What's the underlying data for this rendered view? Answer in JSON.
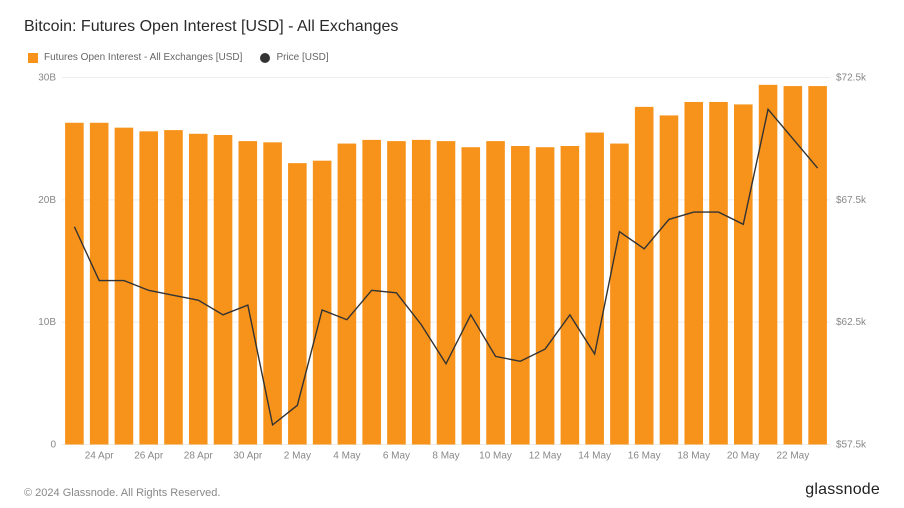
{
  "title": "Bitcoin: Futures Open Interest [USD] - All Exchanges",
  "legend": {
    "bars": "Futures Open Interest - All Exchanges [USD]",
    "line": "Price [USD]"
  },
  "footer": {
    "copyright": "© 2024 Glassnode. All Rights Reserved.",
    "brand": "glassnode"
  },
  "chart": {
    "type": "bar+line",
    "background_color": "#ffffff",
    "grid_color": "#ececec",
    "bar_color": "#f7931a",
    "line_color": "#333333",
    "left_axis": {
      "min": 0,
      "max": 30,
      "ticks": [
        0,
        10,
        20,
        30
      ],
      "tick_labels": [
        "0",
        "10B",
        "20B",
        "30B"
      ]
    },
    "right_axis": {
      "min": 57.5,
      "max": 72.5,
      "ticks": [
        57.5,
        62.5,
        67.5,
        72.5
      ],
      "tick_labels": [
        "$57.5k",
        "$62.5k",
        "$67.5k",
        "$72.5k"
      ]
    },
    "x_labels": [
      "24 Apr",
      "26 Apr",
      "28 Apr",
      "30 Apr",
      "2 May",
      "4 May",
      "6 May",
      "8 May",
      "10 May",
      "12 May",
      "14 May",
      "16 May",
      "18 May",
      "20 May",
      "22 May"
    ],
    "bars": [
      26.3,
      26.3,
      25.9,
      25.6,
      25.7,
      25.4,
      25.3,
      24.8,
      24.7,
      23.0,
      23.2,
      24.6,
      24.9,
      24.8,
      24.9,
      24.8,
      24.3,
      24.8,
      24.4,
      24.3,
      24.4,
      25.5,
      24.6,
      27.6,
      26.9,
      28.0,
      28.0,
      27.8,
      29.4,
      29.3,
      29.3
    ],
    "line": [
      66.4,
      64.2,
      64.2,
      63.8,
      63.6,
      63.4,
      62.8,
      63.2,
      58.3,
      59.1,
      63.0,
      62.6,
      63.8,
      63.7,
      62.4,
      60.8,
      62.8,
      61.1,
      60.9,
      61.4,
      62.8,
      61.2,
      66.2,
      65.5,
      66.7,
      67.0,
      67.0,
      66.5,
      71.2,
      70.0,
      68.8
    ],
    "bar_width_ratio": 0.75,
    "axis_fontsize": 10,
    "title_fontsize": 16
  }
}
